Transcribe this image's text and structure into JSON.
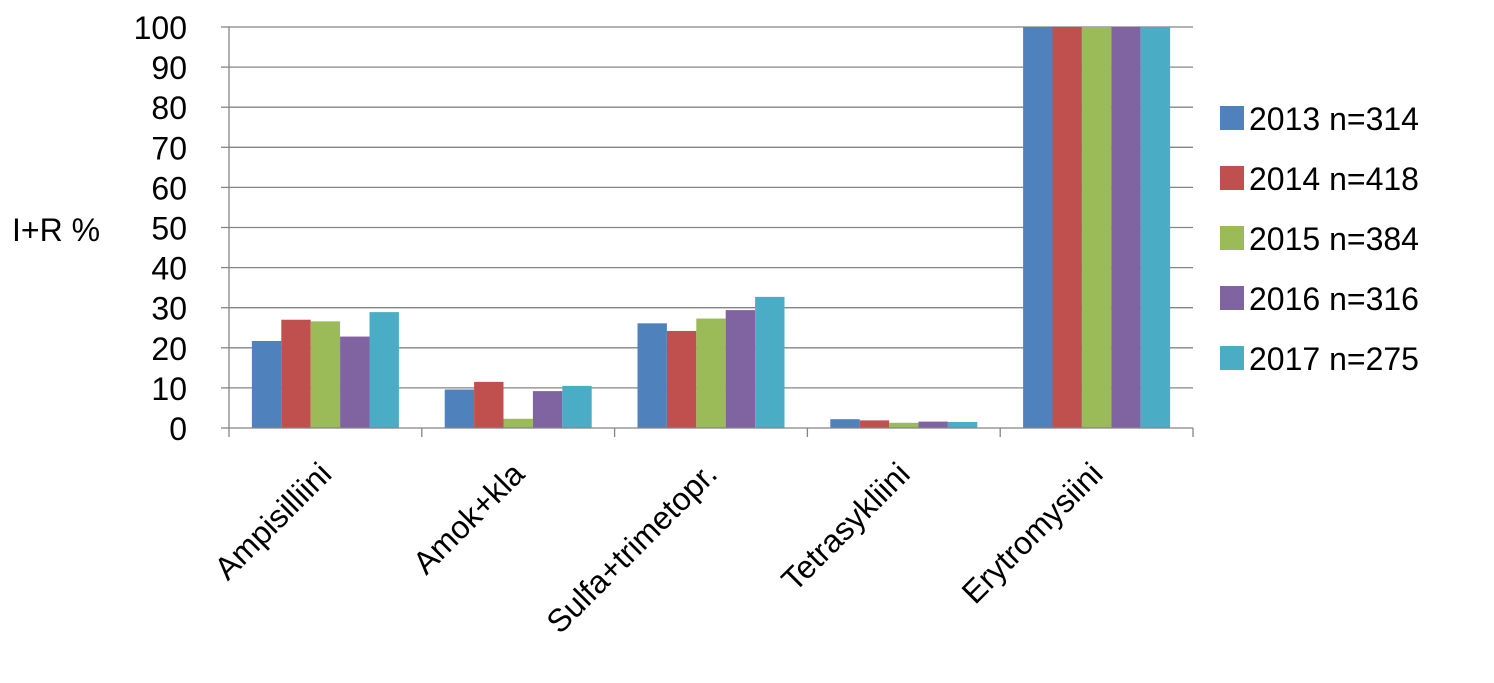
{
  "chart_data": {
    "type": "bar",
    "categories": [
      "Ampisilliini",
      "Amok+kla",
      "Sulfa+trimetopr.",
      "Tetrasykliini",
      "Erytromysiini"
    ],
    "series": [
      {
        "name": "2013 n=314",
        "color": "#4F81BD",
        "values": [
          21.7,
          9.6,
          26.1,
          2.2,
          100
        ]
      },
      {
        "name": "2014 n=418",
        "color": "#C0504D",
        "values": [
          27.0,
          11.5,
          24.2,
          1.9,
          100
        ]
      },
      {
        "name": "2015 n=384",
        "color": "#9BBB59",
        "values": [
          26.6,
          2.3,
          27.3,
          1.3,
          100
        ]
      },
      {
        "name": "2016 n=316",
        "color": "#8064A2",
        "values": [
          22.8,
          9.2,
          29.4,
          1.6,
          100
        ]
      },
      {
        "name": "2017 n=275",
        "color": "#4BACC6",
        "values": [
          28.9,
          10.5,
          32.7,
          1.5,
          100
        ]
      }
    ],
    "ylabel": "I+R %",
    "ylim": [
      0,
      100
    ],
    "yticks": [
      "0",
      "10",
      "20",
      "30",
      "40",
      "50",
      "60",
      "70",
      "80",
      "90",
      "100"
    ],
    "grid": true,
    "legend_position": "right"
  }
}
